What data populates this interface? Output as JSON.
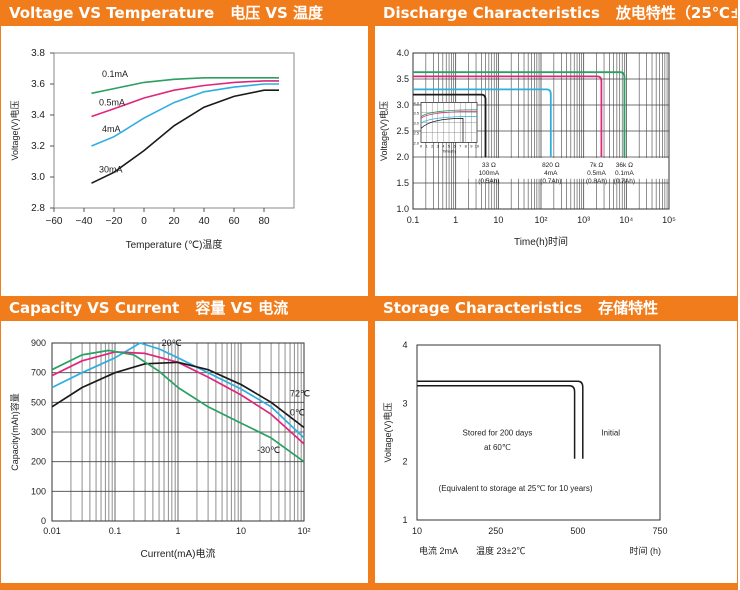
{
  "panels": {
    "vt": {
      "title": "Voltage VS Temperature",
      "title_cn": "电压 VS 温度"
    },
    "dc": {
      "title": "Discharge Characteristics",
      "title_cn": "放电特性（25℃±2℃）"
    },
    "cc": {
      "title": "Capacity VS Current",
      "title_cn": "容量 VS 电流"
    },
    "sc": {
      "title": "Storage Characteristics",
      "title_cn": "存储特性"
    }
  },
  "colors": {
    "header_bg": "#f07c1c",
    "header_text": "#ffffff"
  },
  "chart_data": [
    {
      "id": "vt",
      "type": "line",
      "xlabel": "Temperature (℃)温度",
      "ylabel": "Voltage(V)电压",
      "xlim": [
        -60,
        100
      ],
      "ylim": [
        2.8,
        3.8
      ],
      "xticks": [
        -60,
        -40,
        -20,
        0,
        20,
        40,
        60,
        80
      ],
      "yticks": [
        2.8,
        3.0,
        3.2,
        3.4,
        3.6,
        3.8
      ],
      "ytick_labels": [
        "2.8",
        "3.0",
        "3.2",
        "3.4",
        "3.6",
        "3.8"
      ],
      "series": [
        {
          "name": "0.1mA",
          "color": "#2aa062",
          "x": [
            -35,
            -20,
            0,
            20,
            40,
            60,
            80,
            90
          ],
          "y": [
            3.54,
            3.57,
            3.61,
            3.63,
            3.64,
            3.64,
            3.64,
            3.64
          ]
        },
        {
          "name": "0.5mA",
          "color": "#e0267a",
          "x": [
            -35,
            -20,
            0,
            20,
            40,
            60,
            80,
            90
          ],
          "y": [
            3.39,
            3.44,
            3.51,
            3.56,
            3.59,
            3.61,
            3.62,
            3.62
          ]
        },
        {
          "name": "4mA",
          "color": "#2eaee0",
          "x": [
            -35,
            -20,
            0,
            20,
            40,
            60,
            80,
            90
          ],
          "y": [
            3.2,
            3.26,
            3.38,
            3.48,
            3.55,
            3.58,
            3.6,
            3.6
          ]
        },
        {
          "name": "30mA",
          "color": "#1a1a1a",
          "x": [
            -35,
            -20,
            0,
            20,
            40,
            60,
            80,
            90
          ],
          "y": [
            2.96,
            3.03,
            3.17,
            3.33,
            3.45,
            3.52,
            3.56,
            3.56
          ]
        }
      ]
    },
    {
      "id": "dc",
      "type": "line",
      "xscale": "log",
      "xlabel": "Time(h)时间",
      "ylabel": "Voltage(V)电压",
      "xlim": [
        0.1,
        100000
      ],
      "ylim": [
        1.0,
        4.0
      ],
      "xticks": [
        0.1,
        1,
        10,
        100,
        1000,
        10000,
        100000
      ],
      "xtick_labels": [
        "0.1",
        "1",
        "10",
        "10²",
        "10³",
        "10⁴",
        "10⁵"
      ],
      "yticks": [
        1.0,
        1.5,
        2.0,
        2.5,
        3.0,
        3.5,
        4.0
      ],
      "ytick_labels": [
        "1.0",
        "1.5",
        "2.0",
        "2.5",
        "3.0",
        "3.5",
        "4.0"
      ],
      "grid": true,
      "series": [
        {
          "name": "33 Ω",
          "label_lines": [
            "33 Ω",
            "100mA",
            "(0.5Ah)"
          ],
          "color": "#1a1a1a",
          "plateau": 3.2,
          "end_time": 5,
          "label_x": 6
        },
        {
          "name": "820 Ω",
          "label_lines": [
            "820 Ω",
            "4mA",
            "(0.7Ah)"
          ],
          "color": "#2eaee0",
          "plateau": 3.3,
          "end_time": 170,
          "label_x": 170
        },
        {
          "name": "7k Ω",
          "label_lines": [
            "7k Ω",
            "0.5mA",
            "(0.8Ah)"
          ],
          "color": "#e0267a",
          "plateau": 3.55,
          "end_time": 2600,
          "label_x": 2000
        },
        {
          "name": "36k Ω",
          "label_lines": [
            "36k Ω",
            "0.1mA",
            "(0.7Ah)"
          ],
          "color": "#2aa062",
          "plateau": 3.63,
          "end_time": 9000,
          "label_x": 9000
        }
      ],
      "inset": {
        "xticks": [
          "0",
          "1",
          "2",
          "3",
          "4",
          "5",
          "6",
          "7",
          "8",
          "9",
          "10"
        ],
        "yticks": [
          "4.0",
          "3.5",
          "3.0",
          "2.5",
          "2.0"
        ],
        "xlabel": "Time(h)"
      }
    },
    {
      "id": "cc",
      "type": "line",
      "xscale": "log",
      "xlabel": "Current(mA)电流",
      "ylabel": "Capacity(mAh)容量",
      "xlim": [
        0.01,
        100
      ],
      "ylim": [
        0,
        900
      ],
      "xticks": [
        0.01,
        0.1,
        1,
        10,
        100
      ],
      "xtick_labels": [
        "0.01",
        "0.1",
        "1",
        "10",
        "10²"
      ],
      "yticks": [
        0,
        100,
        200,
        300,
        500,
        700,
        900
      ],
      "ytick_labels": [
        "0",
        "100",
        "200",
        "300",
        "500",
        "700",
        "900"
      ],
      "grid": true,
      "series": [
        {
          "name": "20℃",
          "color": "#2eaee0",
          "x": [
            0.01,
            0.03,
            0.1,
            0.25,
            0.5,
            1,
            3,
            10,
            30,
            100
          ],
          "y": [
            600,
            700,
            800,
            900,
            860,
            800,
            700,
            590,
            470,
            280
          ]
        },
        {
          "name": "0℃",
          "color": "#e0267a",
          "x": [
            0.01,
            0.03,
            0.1,
            0.3,
            1,
            3,
            10,
            30,
            100
          ],
          "y": [
            680,
            780,
            840,
            830,
            770,
            670,
            550,
            420,
            260
          ]
        },
        {
          "name": "72℃",
          "color": "#1a1a1a",
          "x": [
            0.01,
            0.03,
            0.1,
            0.3,
            1,
            3,
            10,
            30,
            100
          ],
          "y": [
            470,
            600,
            700,
            760,
            770,
            720,
            620,
            500,
            330
          ]
        },
        {
          "name": "-30℃",
          "color": "#2aa062",
          "x": [
            0.01,
            0.03,
            0.08,
            0.2,
            0.5,
            1,
            3,
            10,
            30,
            100
          ],
          "y": [
            720,
            820,
            850,
            820,
            710,
            600,
            470,
            360,
            280,
            200
          ]
        }
      ]
    },
    {
      "id": "sc",
      "type": "line",
      "xlabel": "时间 (h)",
      "ylabel": "Voltage(V)电压",
      "xlim": [
        10,
        750
      ],
      "ylim": [
        1,
        4
      ],
      "xticks": [
        10,
        250,
        500,
        750
      ],
      "yticks": [
        1,
        2,
        3,
        4
      ],
      "annotations": [
        "Stored for 200 days",
        "at 60℃",
        "Initial",
        "(Equivalent to storage at 25℃ for 10 years)"
      ],
      "footer": {
        "current": "电流 2mA",
        "temp": "温度 23±2℃"
      },
      "series": [
        {
          "name": "Initial",
          "color": "#1a1a1a",
          "plateau": 3.38,
          "end_time": 515
        },
        {
          "name": "Stored for 200 days",
          "color": "#1a1a1a",
          "plateau": 3.3,
          "end_time": 490
        }
      ]
    }
  ]
}
